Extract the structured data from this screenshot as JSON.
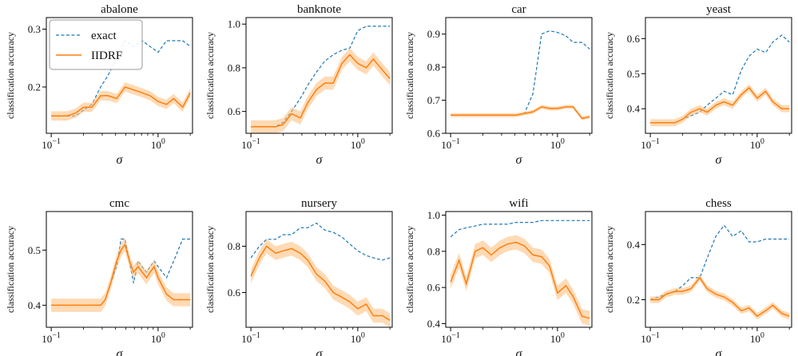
{
  "legend": {
    "entries": [
      {
        "name": "exact",
        "color": "#1f77b4",
        "style": "dashed"
      },
      {
        "name": "IIDRF",
        "color": "#ff7f0e",
        "style": "solid"
      }
    ],
    "placement": "top-left of first panel"
  },
  "colors": {
    "exact": "#1f77b4",
    "iidrf": "#ff7f0e",
    "band": "#ffbb78"
  },
  "chart_data": [
    {
      "type": "line",
      "title": "abalone",
      "xlabel": "σ",
      "ylabel": "classification accuracy",
      "x_scale": "log",
      "xlim": [
        0.09,
        2.1
      ],
      "ylim": [
        0.12,
        0.32
      ],
      "xticks": [
        {
          "v": 0.1,
          "base": "10",
          "exp": "−1"
        },
        {
          "v": 1,
          "base": "10",
          "exp": "0"
        }
      ],
      "yticks": [
        {
          "v": 0.2,
          "label": "0.2"
        },
        {
          "v": 0.3,
          "label": "0.3"
        }
      ],
      "x": [
        0.1,
        0.12,
        0.14,
        0.17,
        0.2,
        0.24,
        0.29,
        0.34,
        0.41,
        0.49,
        0.59,
        0.71,
        0.84,
        1.0,
        1.2,
        1.4,
        1.7,
        2.0
      ],
      "series": [
        {
          "name": "exact",
          "values": [
            0.15,
            0.15,
            0.15,
            0.15,
            0.16,
            0.17,
            0.2,
            0.22,
            0.25,
            0.28,
            0.27,
            0.28,
            0.27,
            0.26,
            0.28,
            0.28,
            0.28,
            0.27
          ]
        },
        {
          "name": "IIDRF",
          "values": [
            0.15,
            0.15,
            0.15,
            0.155,
            0.165,
            0.165,
            0.185,
            0.185,
            0.18,
            0.2,
            0.195,
            0.19,
            0.185,
            0.175,
            0.17,
            0.18,
            0.165,
            0.19
          ],
          "band": 0.008
        }
      ]
    },
    {
      "type": "line",
      "title": "banknote",
      "xlabel": "σ",
      "ylabel": "classification accuracy",
      "x_scale": "log",
      "xlim": [
        0.09,
        2.1
      ],
      "ylim": [
        0.5,
        1.03
      ],
      "xticks": [
        {
          "v": 0.1,
          "base": "10",
          "exp": "−1"
        },
        {
          "v": 1,
          "base": "10",
          "exp": "0"
        }
      ],
      "yticks": [
        {
          "v": 0.6,
          "label": "0.6"
        },
        {
          "v": 0.8,
          "label": "0.8"
        },
        {
          "v": 1.0,
          "label": "1.0"
        }
      ],
      "x": [
        0.1,
        0.12,
        0.14,
        0.17,
        0.2,
        0.24,
        0.29,
        0.34,
        0.41,
        0.49,
        0.59,
        0.71,
        0.84,
        1.0,
        1.2,
        1.4,
        1.7,
        2.0
      ],
      "series": [
        {
          "name": "exact",
          "values": [
            0.53,
            0.53,
            0.53,
            0.53,
            0.55,
            0.6,
            0.66,
            0.72,
            0.78,
            0.83,
            0.86,
            0.88,
            0.89,
            0.97,
            0.99,
            0.99,
            0.99,
            0.99
          ]
        },
        {
          "name": "IIDRF",
          "values": [
            0.53,
            0.53,
            0.53,
            0.53,
            0.54,
            0.59,
            0.57,
            0.64,
            0.7,
            0.73,
            0.73,
            0.82,
            0.86,
            0.82,
            0.8,
            0.84,
            0.79,
            0.75
          ],
          "band": 0.03
        }
      ]
    },
    {
      "type": "line",
      "title": "car",
      "xlabel": "σ",
      "ylabel": "classification accuracy",
      "x_scale": "log",
      "xlim": [
        0.09,
        2.1
      ],
      "ylim": [
        0.6,
        0.95
      ],
      "xticks": [
        {
          "v": 0.1,
          "base": "10",
          "exp": "−1"
        },
        {
          "v": 1,
          "base": "10",
          "exp": "0"
        }
      ],
      "yticks": [
        {
          "v": 0.6,
          "label": "0.6"
        },
        {
          "v": 0.7,
          "label": "0.7"
        },
        {
          "v": 0.8,
          "label": "0.8"
        },
        {
          "v": 0.9,
          "label": "0.9"
        }
      ],
      "x": [
        0.1,
        0.12,
        0.14,
        0.17,
        0.2,
        0.24,
        0.29,
        0.34,
        0.41,
        0.49,
        0.59,
        0.71,
        0.84,
        1.0,
        1.2,
        1.4,
        1.7,
        2.0
      ],
      "series": [
        {
          "name": "exact",
          "values": [
            0.655,
            0.655,
            0.655,
            0.655,
            0.655,
            0.655,
            0.655,
            0.655,
            0.655,
            0.66,
            0.72,
            0.9,
            0.91,
            0.905,
            0.895,
            0.875,
            0.875,
            0.855
          ]
        },
        {
          "name": "IIDRF",
          "values": [
            0.655,
            0.655,
            0.655,
            0.655,
            0.655,
            0.655,
            0.655,
            0.655,
            0.655,
            0.66,
            0.665,
            0.68,
            0.675,
            0.675,
            0.68,
            0.68,
            0.645,
            0.65
          ],
          "band": 0.006
        }
      ]
    },
    {
      "type": "line",
      "title": "yeast",
      "xlabel": "σ",
      "ylabel": "classification accuracy",
      "x_scale": "log",
      "xlim": [
        0.09,
        2.1
      ],
      "ylim": [
        0.33,
        0.66
      ],
      "xticks": [
        {
          "v": 0.1,
          "base": "10",
          "exp": "−1"
        },
        {
          "v": 1,
          "base": "10",
          "exp": "0"
        }
      ],
      "yticks": [
        {
          "v": 0.4,
          "label": "0.4"
        },
        {
          "v": 0.5,
          "label": "0.5"
        },
        {
          "v": 0.6,
          "label": "0.6"
        }
      ],
      "x": [
        0.1,
        0.12,
        0.14,
        0.17,
        0.2,
        0.24,
        0.29,
        0.34,
        0.41,
        0.49,
        0.59,
        0.71,
        0.84,
        1.0,
        1.2,
        1.4,
        1.7,
        2.0
      ],
      "series": [
        {
          "name": "exact",
          "values": [
            0.36,
            0.36,
            0.36,
            0.36,
            0.37,
            0.38,
            0.39,
            0.41,
            0.43,
            0.45,
            0.44,
            0.51,
            0.55,
            0.57,
            0.56,
            0.59,
            0.61,
            0.59
          ]
        },
        {
          "name": "IIDRF",
          "values": [
            0.36,
            0.36,
            0.36,
            0.36,
            0.37,
            0.39,
            0.4,
            0.39,
            0.41,
            0.42,
            0.41,
            0.44,
            0.46,
            0.43,
            0.45,
            0.42,
            0.4,
            0.4
          ],
          "band": 0.01
        }
      ]
    },
    {
      "type": "line",
      "title": "cmc",
      "xlabel": "σ",
      "ylabel": "classification accuracy",
      "x_scale": "log",
      "xlim": [
        0.09,
        2.1
      ],
      "ylim": [
        0.36,
        0.57
      ],
      "xticks": [
        {
          "v": 0.1,
          "base": "10",
          "exp": "−1"
        },
        {
          "v": 1,
          "base": "10",
          "exp": "0"
        }
      ],
      "yticks": [
        {
          "v": 0.4,
          "label": "0.4"
        },
        {
          "v": 0.5,
          "label": "0.5"
        }
      ],
      "x": [
        0.1,
        0.12,
        0.14,
        0.17,
        0.2,
        0.24,
        0.29,
        0.32,
        0.36,
        0.41,
        0.45,
        0.49,
        0.54,
        0.59,
        0.65,
        0.71,
        0.78,
        0.84,
        0.92,
        1.0,
        1.2,
        1.4,
        1.7,
        2.0
      ],
      "series": [
        {
          "name": "exact",
          "values": [
            0.4,
            0.4,
            0.4,
            0.4,
            0.4,
            0.4,
            0.4,
            0.41,
            0.44,
            0.47,
            0.52,
            0.52,
            0.48,
            0.44,
            0.48,
            0.47,
            0.46,
            0.47,
            0.48,
            0.47,
            0.45,
            0.48,
            0.52,
            0.52
          ]
        },
        {
          "name": "IIDRF",
          "values": [
            0.4,
            0.4,
            0.4,
            0.4,
            0.4,
            0.4,
            0.4,
            0.41,
            0.44,
            0.48,
            0.5,
            0.51,
            0.48,
            0.46,
            0.47,
            0.46,
            0.45,
            0.46,
            0.47,
            0.45,
            0.42,
            0.41,
            0.41,
            0.41
          ],
          "band": 0.012
        }
      ]
    },
    {
      "type": "line",
      "title": "nursery",
      "xlabel": "σ",
      "ylabel": "classification accuracy",
      "x_scale": "log",
      "xlim": [
        0.09,
        2.1
      ],
      "ylim": [
        0.45,
        0.95
      ],
      "xticks": [
        {
          "v": 0.1,
          "base": "10",
          "exp": "−1"
        },
        {
          "v": 1,
          "base": "10",
          "exp": "0"
        }
      ],
      "yticks": [
        {
          "v": 0.6,
          "label": "0.6"
        },
        {
          "v": 0.8,
          "label": "0.8"
        }
      ],
      "x": [
        0.1,
        0.12,
        0.14,
        0.17,
        0.2,
        0.24,
        0.29,
        0.34,
        0.41,
        0.49,
        0.59,
        0.71,
        0.84,
        1.0,
        1.2,
        1.4,
        1.7,
        2.0
      ],
      "series": [
        {
          "name": "exact",
          "values": [
            0.75,
            0.8,
            0.83,
            0.83,
            0.85,
            0.85,
            0.88,
            0.88,
            0.9,
            0.87,
            0.86,
            0.84,
            0.81,
            0.78,
            0.76,
            0.75,
            0.74,
            0.75
          ]
        },
        {
          "name": "IIDRF",
          "values": [
            0.67,
            0.75,
            0.8,
            0.77,
            0.78,
            0.79,
            0.77,
            0.74,
            0.68,
            0.65,
            0.6,
            0.58,
            0.56,
            0.53,
            0.55,
            0.5,
            0.5,
            0.48
          ],
          "band": 0.03
        }
      ]
    },
    {
      "type": "line",
      "title": "wifi",
      "xlabel": "σ",
      "ylabel": "classification accuracy",
      "x_scale": "log",
      "xlim": [
        0.09,
        2.1
      ],
      "ylim": [
        0.38,
        1.02
      ],
      "xticks": [
        {
          "v": 0.1,
          "base": "10",
          "exp": "−1"
        },
        {
          "v": 1,
          "base": "10",
          "exp": "0"
        }
      ],
      "yticks": [
        {
          "v": 0.4,
          "label": "0.4"
        },
        {
          "v": 0.6,
          "label": "0.6"
        },
        {
          "v": 0.8,
          "label": "0.8"
        },
        {
          "v": 1.0,
          "label": "1.0"
        }
      ],
      "x": [
        0.1,
        0.12,
        0.14,
        0.17,
        0.2,
        0.24,
        0.29,
        0.34,
        0.41,
        0.49,
        0.59,
        0.71,
        0.84,
        1.0,
        1.2,
        1.4,
        1.7,
        2.0
      ],
      "series": [
        {
          "name": "exact",
          "values": [
            0.88,
            0.92,
            0.93,
            0.94,
            0.95,
            0.95,
            0.95,
            0.95,
            0.96,
            0.96,
            0.96,
            0.97,
            0.97,
            0.97,
            0.97,
            0.97,
            0.97,
            0.97
          ]
        },
        {
          "name": "IIDRF",
          "values": [
            0.63,
            0.75,
            0.62,
            0.8,
            0.82,
            0.78,
            0.82,
            0.84,
            0.85,
            0.83,
            0.78,
            0.77,
            0.72,
            0.57,
            0.61,
            0.55,
            0.44,
            0.43
          ],
          "band": 0.04
        }
      ]
    },
    {
      "type": "line",
      "title": "chess",
      "xlabel": "σ",
      "ylabel": "classification accuracy",
      "x_scale": "log",
      "xlim": [
        0.09,
        2.1
      ],
      "ylim": [
        0.1,
        0.52
      ],
      "xticks": [
        {
          "v": 0.1,
          "base": "10",
          "exp": "−1"
        },
        {
          "v": 1,
          "base": "10",
          "exp": "0"
        }
      ],
      "yticks": [
        {
          "v": 0.2,
          "label": "0.2"
        },
        {
          "v": 0.4,
          "label": "0.4"
        }
      ],
      "x": [
        0.1,
        0.12,
        0.14,
        0.17,
        0.2,
        0.24,
        0.29,
        0.34,
        0.41,
        0.49,
        0.59,
        0.71,
        0.84,
        1.0,
        1.2,
        1.4,
        1.7,
        2.0
      ],
      "series": [
        {
          "name": "exact",
          "values": [
            0.2,
            0.21,
            0.22,
            0.23,
            0.25,
            0.28,
            0.28,
            0.35,
            0.43,
            0.47,
            0.43,
            0.45,
            0.41,
            0.41,
            0.42,
            0.42,
            0.42,
            0.42
          ]
        },
        {
          "name": "IIDRF",
          "values": [
            0.2,
            0.2,
            0.22,
            0.23,
            0.23,
            0.24,
            0.28,
            0.24,
            0.22,
            0.21,
            0.19,
            0.16,
            0.17,
            0.14,
            0.16,
            0.18,
            0.15,
            0.14
          ],
          "band": 0.012
        }
      ]
    }
  ]
}
